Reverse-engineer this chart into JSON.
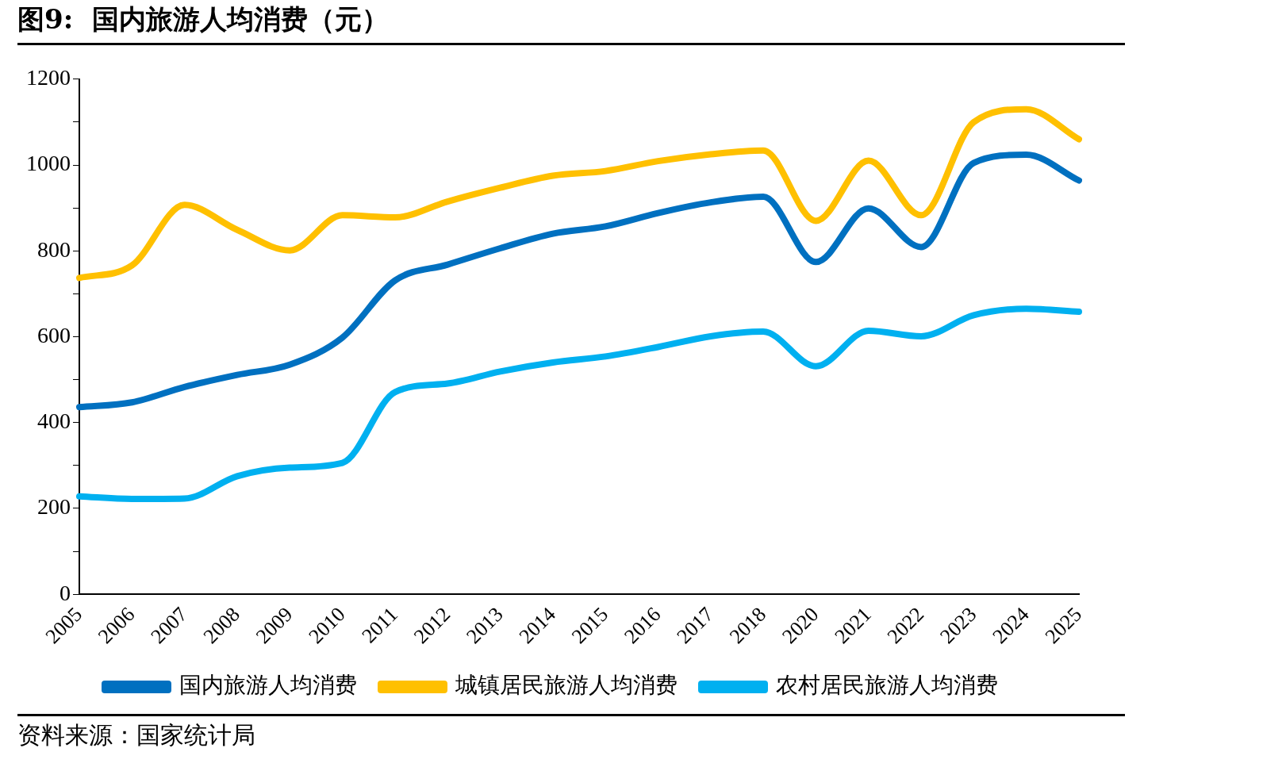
{
  "chart_data": {
    "type": "line",
    "title": "图9:  国内旅游人均消费（元）",
    "categories": [
      "2005",
      "2006",
      "2007",
      "2008",
      "2009",
      "2010",
      "2011",
      "2012",
      "2013",
      "2014",
      "2015",
      "2016",
      "2017",
      "2018",
      "2020",
      "2021",
      "2022",
      "2023",
      "2024",
      "2025"
    ],
    "series": [
      {
        "name": "国内旅游人均消费",
        "color": "#0070c0",
        "values": [
          436,
          447,
          483,
          511,
          535,
          598,
          731,
          768,
          806,
          840,
          857,
          888,
          913,
          926,
          774,
          899,
          809,
          1005,
          1024,
          964
        ]
      },
      {
        "name": "城镇居民旅游人均消费",
        "color": "#ffc000",
        "values": [
          737,
          766,
          907,
          849,
          801,
          883,
          878,
          915,
          947,
          975,
          986,
          1009,
          1025,
          1034,
          870,
          1010,
          883,
          1100,
          1130,
          1060
        ]
      },
      {
        "name": "农村居民旅游人均消费",
        "color": "#00b0f0",
        "values": [
          228,
          222,
          223,
          275,
          295,
          306,
          471,
          491,
          519,
          540,
          554,
          576,
          601,
          612,
          531,
          614,
          601,
          650,
          665,
          658
        ]
      }
    ],
    "ylim": [
      0,
      1200
    ],
    "yticks": [
      0,
      {
        "value": 100,
        "label": null
      },
      200,
      {
        "value": 300,
        "label": null
      },
      400,
      {
        "value": 500,
        "label": null
      },
      600,
      {
        "value": 700,
        "label": null
      },
      800,
      {
        "value": 900,
        "label": null
      },
      1000,
      {
        "value": 1100,
        "label": null
      },
      1200
    ],
    "grid": false,
    "legend": "bottom",
    "marker": "none",
    "line_style": "solid",
    "annotations": [
      "资料来源：国家统计局"
    ]
  }
}
